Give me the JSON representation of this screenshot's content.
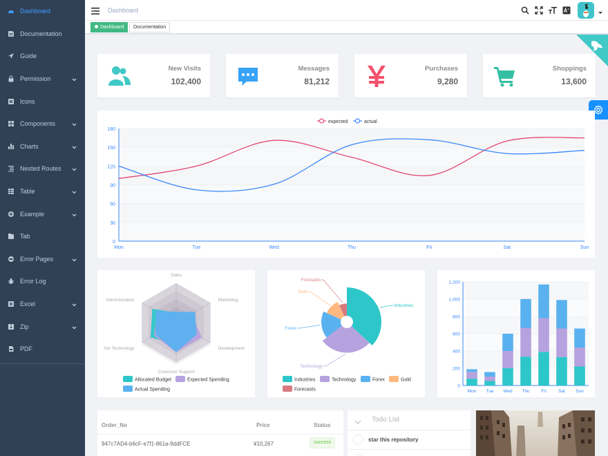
{
  "sidebar": {
    "items": [
      {
        "label": "Dashboard",
        "icon": "dashboard-icon",
        "active": true,
        "expandable": false
      },
      {
        "label": "Documentation",
        "icon": "documentation-icon",
        "expandable": false
      },
      {
        "label": "Guide",
        "icon": "guide-icon",
        "expandable": false
      },
      {
        "label": "Permission",
        "icon": "lock-icon",
        "expandable": true
      },
      {
        "label": "Icons",
        "icon": "icons-icon",
        "expandable": false
      },
      {
        "label": "Components",
        "icon": "components-icon",
        "expandable": true
      },
      {
        "label": "Charts",
        "icon": "chart-icon",
        "expandable": true
      },
      {
        "label": "Nested Routes",
        "icon": "nested-icon",
        "expandable": true
      },
      {
        "label": "Table",
        "icon": "table-icon",
        "expandable": true
      },
      {
        "label": "Example",
        "icon": "example-icon",
        "expandable": true
      },
      {
        "label": "Tab",
        "icon": "tab-icon",
        "expandable": false
      },
      {
        "label": "Error Pages",
        "icon": "404-icon",
        "expandable": true
      },
      {
        "label": "Error Log",
        "icon": "bug-icon",
        "expandable": false
      },
      {
        "label": "Excel",
        "icon": "excel-icon",
        "expandable": true
      },
      {
        "label": "Zip",
        "icon": "zip-icon",
        "expandable": true
      },
      {
        "label": "PDF",
        "icon": "pdf-icon",
        "expandable": false
      }
    ]
  },
  "navbar": {
    "breadcrumb": "Dashboard"
  },
  "tags": {
    "dashboard": "Dashboard",
    "documentation": "Documentation"
  },
  "panels": [
    {
      "title": "New Visits",
      "value": "102,400",
      "icon": "peoples-icon",
      "color": "#40c9c6"
    },
    {
      "title": "Messages",
      "value": "81,212",
      "icon": "message-icon",
      "color": "#36a3f7"
    },
    {
      "title": "Purchases",
      "value": "9,280",
      "icon": "money-icon",
      "color": "#f4516c"
    },
    {
      "title": "Shoppings",
      "value": "13,600",
      "icon": "shopping-icon",
      "color": "#34bfa3"
    }
  ],
  "chart_data": [
    {
      "type": "line",
      "legend": [
        "expected",
        "actual"
      ],
      "legend_position": "top-center",
      "categories": [
        "Mon",
        "Tue",
        "Wed",
        "Thu",
        "Fri",
        "Sat",
        "Sun"
      ],
      "ylim": [
        0,
        180
      ],
      "yticks": [
        0,
        30,
        60,
        90,
        120,
        150,
        180
      ],
      "series": [
        {
          "name": "expected",
          "values": [
            100,
            120,
            161,
            134,
            105,
            160,
            165
          ],
          "color": "#e0456e"
        },
        {
          "name": "actual",
          "values": [
            120,
            82,
            91,
            154,
            162,
            140,
            145
          ],
          "color": "#3888fa"
        }
      ]
    },
    {
      "type": "radar",
      "indicators": [
        "Sales",
        "Marketing",
        "Development",
        "Customer Support",
        "Ion Technology",
        "Administration"
      ],
      "series": [
        {
          "name": "Allocated Budget",
          "values": [
            5000,
            7000,
            12000,
            11000,
            15000,
            14000
          ],
          "color": "#2ec7c9"
        },
        {
          "name": "Expected Spending",
          "values": [
            4000,
            9000,
            15000,
            15000,
            13000,
            11000
          ],
          "color": "#b6a2de"
        },
        {
          "name": "Actual Spending",
          "values": [
            5500,
            11000,
            12000,
            15000,
            12000,
            12000
          ],
          "color": "#5ab1ef"
        }
      ],
      "max": 20000
    },
    {
      "type": "pie",
      "variant": "rose",
      "slices": [
        {
          "name": "Industries",
          "value": 320,
          "color": "#2ec7c9"
        },
        {
          "name": "Technology",
          "value": 240,
          "color": "#b6a2de"
        },
        {
          "name": "Forex",
          "value": 149,
          "color": "#5ab1ef"
        },
        {
          "name": "Gold",
          "value": 100,
          "color": "#ffb980"
        },
        {
          "name": "Forecasts",
          "value": 59,
          "color": "#d87a80"
        }
      ]
    },
    {
      "type": "bar",
      "stacked": true,
      "categories": [
        "Mon",
        "Tue",
        "Wed",
        "Thu",
        "Fri",
        "Sat",
        "Sun"
      ],
      "ylim": [
        0,
        1200
      ],
      "yticks": [
        "0",
        "200",
        "400",
        "600",
        "800",
        "1,000",
        "1,200"
      ],
      "series": [
        {
          "values": [
            79,
            52,
            200,
            334,
            390,
            330,
            220
          ],
          "color": "#2ec7c9"
        },
        {
          "values": [
            80,
            52,
            200,
            334,
            390,
            330,
            220
          ],
          "color": "#b6a2de"
        },
        {
          "values": [
            30,
            52,
            200,
            334,
            390,
            330,
            220
          ],
          "color": "#5ab1ef"
        }
      ]
    }
  ],
  "table": {
    "headers": {
      "order": "Order_No",
      "price": "Price",
      "status": "Status"
    },
    "rows": [
      {
        "order": "947c7AD4-b6cF-e7f1-861a-9ddFCE",
        "price": "¥10,267",
        "status": "success"
      }
    ]
  },
  "todo": {
    "title": "Todo List",
    "items": [
      "star this repository"
    ]
  }
}
